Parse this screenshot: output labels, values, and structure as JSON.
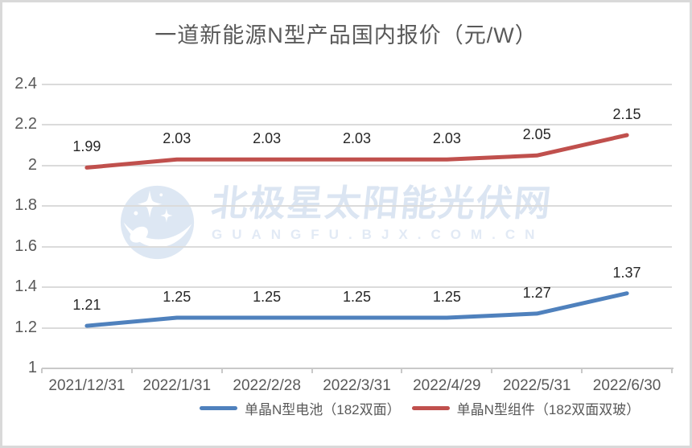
{
  "watermark": {
    "line1": "北极星太阳能光伏网",
    "line2": "GUANGFU.BJX.COM.CN",
    "color": "#dbe5f2"
  },
  "chart_data": {
    "type": "line",
    "title": "一道新能源N型产品国内报价（元/W）",
    "categories": [
      "2021/12/31",
      "2022/1/31",
      "2022/2/28",
      "2022/3/31",
      "2022/4/29",
      "2022/5/31",
      "2022/6/30"
    ],
    "series": [
      {
        "name": "单晶N型电池（182双面）",
        "color": "#4f81bd",
        "values": [
          1.21,
          1.25,
          1.25,
          1.25,
          1.25,
          1.27,
          1.37
        ],
        "labels": [
          "1.21",
          "1.25",
          "1.25",
          "1.25",
          "1.25",
          "1.27",
          "1.37"
        ]
      },
      {
        "name": "单晶N型组件（182双面双玻）",
        "color": "#c0504d",
        "values": [
          1.99,
          2.03,
          2.03,
          2.03,
          2.03,
          2.05,
          2.15
        ],
        "labels": [
          "1.99",
          "2.03",
          "2.03",
          "2.03",
          "2.03",
          "2.05",
          "2.15"
        ]
      }
    ],
    "ylim": [
      1,
      2.4
    ],
    "yticks": [
      {
        "value": 1,
        "label": "1"
      },
      {
        "value": 1.2,
        "label": "1.2"
      },
      {
        "value": 1.4,
        "label": "1.4"
      },
      {
        "value": 1.6,
        "label": "1.6"
      },
      {
        "value": 1.8,
        "label": "1.8"
      },
      {
        "value": 2,
        "label": "2"
      },
      {
        "value": 2.2,
        "label": "2.2"
      },
      {
        "value": 2.4,
        "label": "2.4"
      }
    ],
    "grid": true,
    "legend_position": "bottom"
  },
  "colors": {
    "grid": "#dbdbdb",
    "axis": "#c9c9c9",
    "tick_label": "#595959",
    "data_label": "#262626",
    "title": "#595959"
  }
}
